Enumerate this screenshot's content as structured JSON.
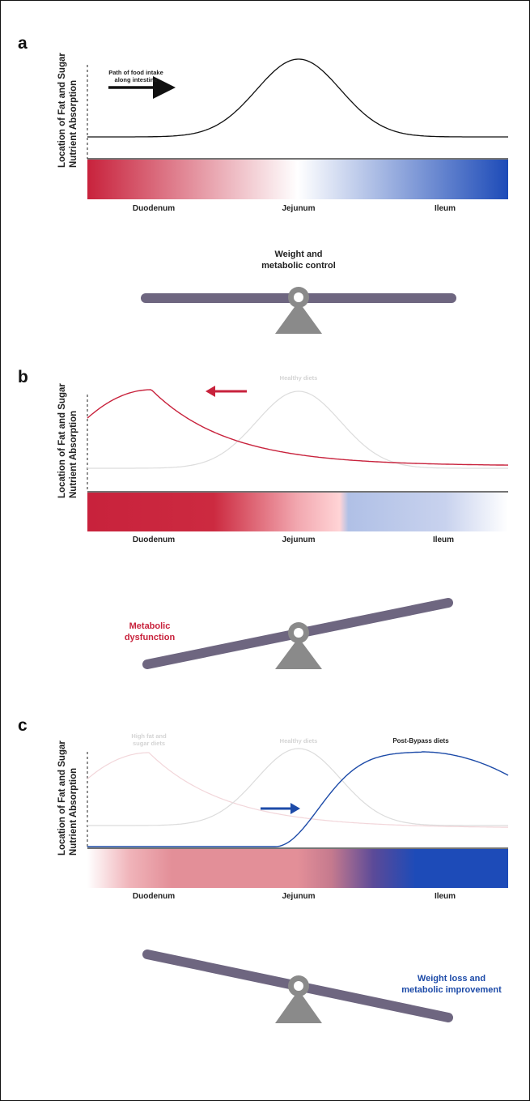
{
  "panels": {
    "a": {
      "label": "a",
      "ylabel_line1": "Location of Fat and Sugar",
      "ylabel_line2": "Nutrient Absorption",
      "arrow_text_line1": "Path of food intake",
      "arrow_text_line2": "along intestine",
      "segments": [
        "Duodenum",
        "Jejunum",
        "Ileum"
      ],
      "caption_line1": "Weight and",
      "caption_line2": "metabolic control",
      "balance": "level"
    },
    "b": {
      "label": "b",
      "ylabel_line1": "Location of Fat and Sugar",
      "ylabel_line2": "Nutrient Absorption",
      "ghost_curve_label": "Healthy diets",
      "segments": [
        "Duodenum",
        "Jejunum",
        "Ileum"
      ],
      "caption_line1": "Metabolic",
      "caption_line2": "dysfunction",
      "balance": "tilted-down-left"
    },
    "c": {
      "label": "c",
      "ylabel_line1": "Location of Fat and Sugar",
      "ylabel_line2": "Nutrient Absorption",
      "ghost_label_1_line1": "High fat and",
      "ghost_label_1_line2": "sugar diets",
      "ghost_label_2": "Healthy diets",
      "curve_label": "Post-Bypass diets",
      "segments": [
        "Duodenum",
        "Jejunum",
        "Ileum"
      ],
      "caption_line1": "Weight loss and",
      "caption_line2": "metabolic improvement",
      "balance": "tilted-down-right"
    }
  },
  "colors": {
    "red": "#c8223c",
    "blue": "#1d4ba8",
    "beam": "#6e6680",
    "pivot": "#8a8a8a",
    "ghost_curve": "#dcdcdc"
  }
}
